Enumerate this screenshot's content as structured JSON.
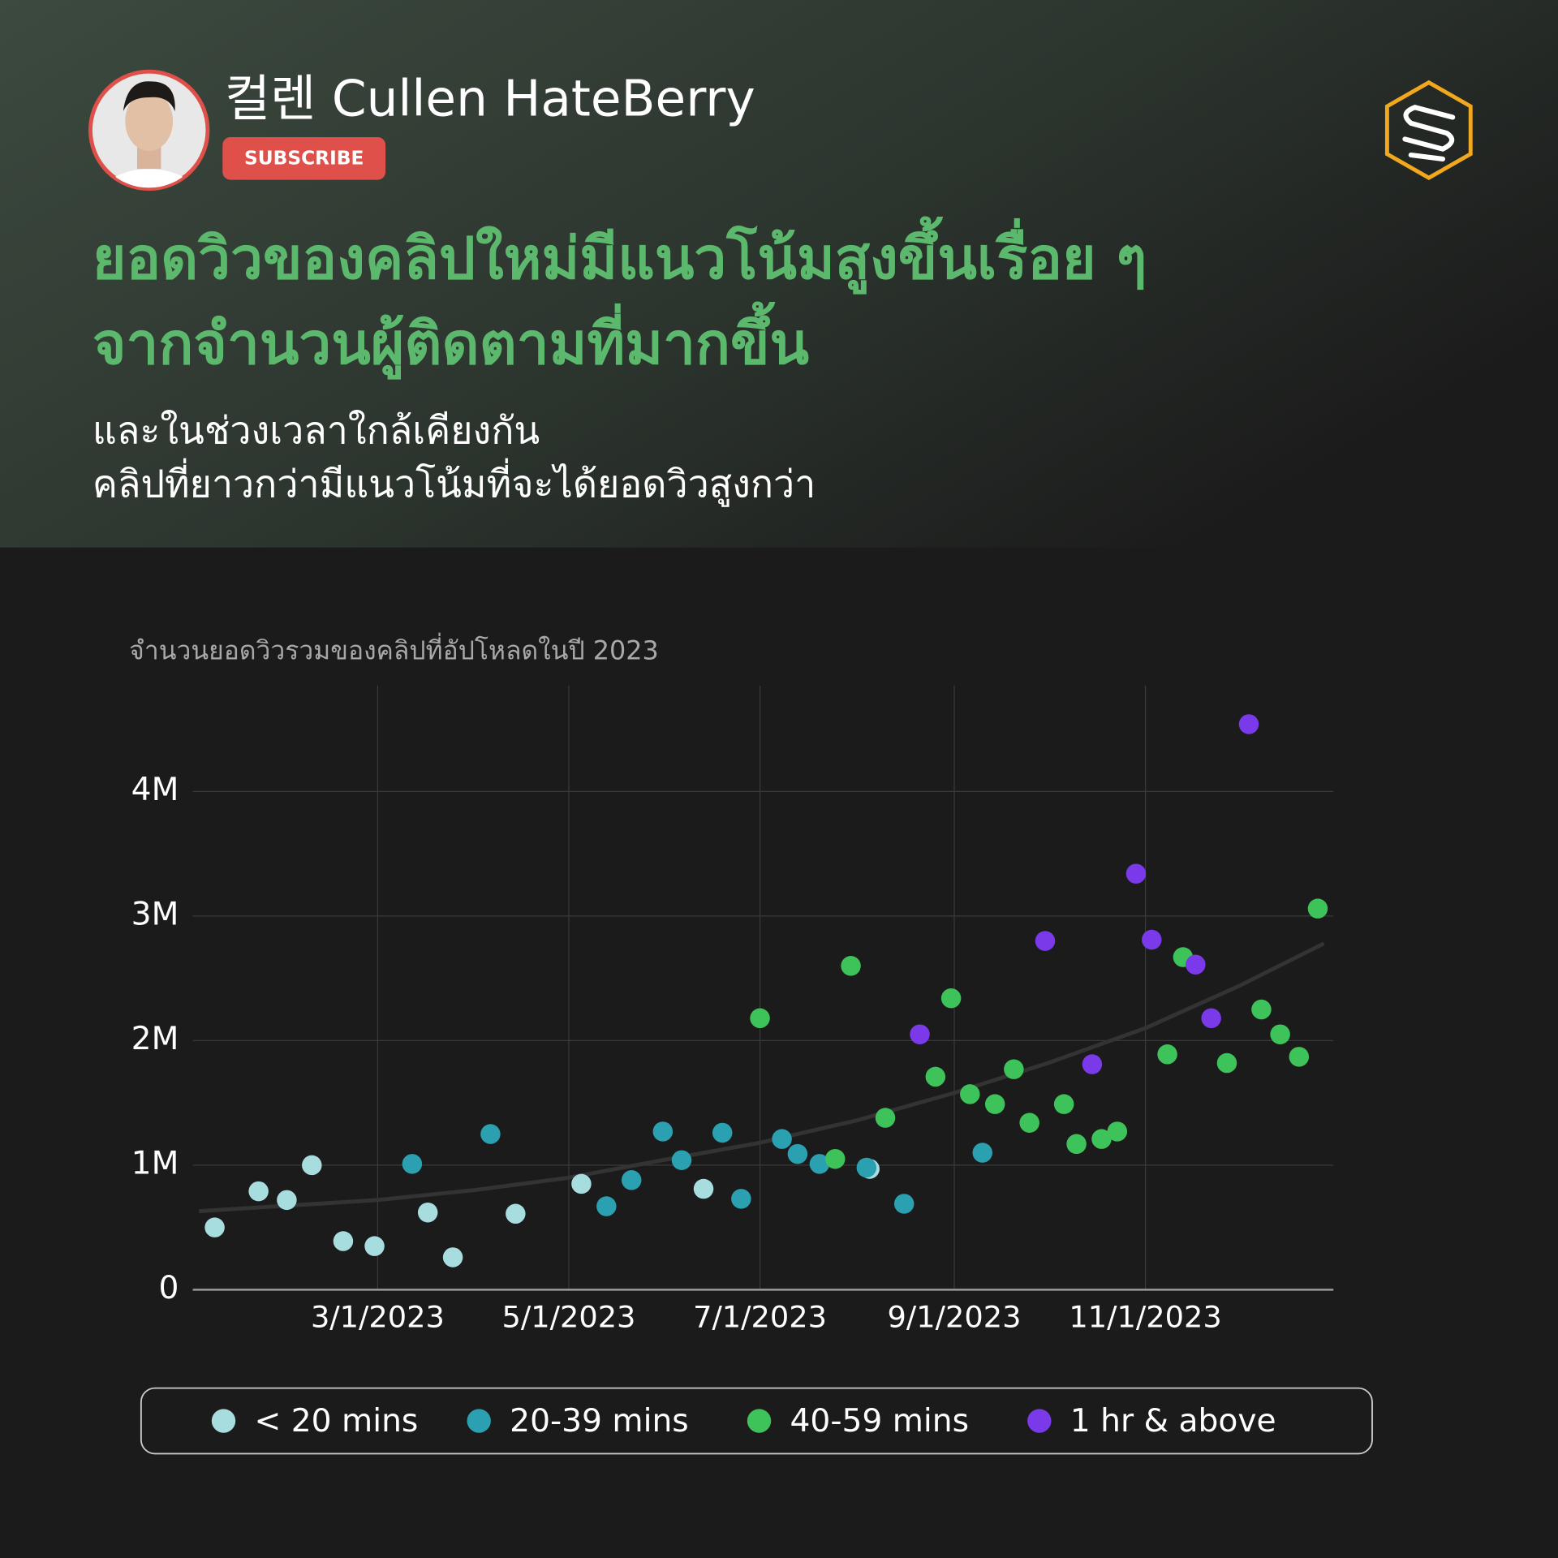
{
  "header": {
    "name": "컬렌 Cullen HateBerry",
    "subscribe": "SUBSCRIBE",
    "headline": [
      "ยอดวิวของคลิปใหม่มีแนวโน้มสูงขึ้นเรื่อย ๆ",
      "จากจำนวนผู้ติดตามที่มากขึ้น"
    ],
    "subtitle": [
      "และในช่วงเวลาใกล้เคียงกัน",
      "คลิปที่ยาวกว่ามีแนวโน้มที่จะได้ยอดวิวสูงกว่า"
    ]
  },
  "chart_data": {
    "type": "scatter",
    "title": "จำนวนยอดวิวรวมของคลิปที่อัปโหลดในปี 2023",
    "xlim": [
      "1/1/2023",
      "12/31/2023"
    ],
    "xticks": [
      "3/1/2023",
      "5/1/2023",
      "7/1/2023",
      "9/1/2023",
      "11/1/2023"
    ],
    "ylim": [
      0,
      4850000
    ],
    "yticks": [
      0,
      {
        "value": 1000000,
        "label": "1M"
      },
      {
        "value": 2000000,
        "label": "2M"
      },
      {
        "value": 3000000,
        "label": "3M"
      },
      {
        "value": 4000000,
        "label": "4M"
      }
    ],
    "grid": true,
    "legend": "bottom",
    "trend": {
      "color": "#333333",
      "x": [
        "1/3/2023",
        "3/1/2023",
        "4/1/2023",
        "5/1/2023",
        "5/31/2023",
        "7/1/2023",
        "8/1/2023",
        "9/1/2023",
        "10/1/2023",
        "11/1/2023",
        "12/1/2023",
        "12/28/2023"
      ],
      "values": [
        630000,
        720000,
        800000,
        900000,
        1040000,
        1180000,
        1360000,
        1580000,
        1820000,
        2100000,
        2440000,
        2780000
      ]
    },
    "series": [
      {
        "name": "< 20 mins",
        "color": "#a8dde0",
        "x": [
          "1/8/2023",
          "1/22/2023",
          "1/31/2023",
          "2/8/2023",
          "2/18/2023",
          "2/28/2023",
          "3/17/2023",
          "3/25/2023",
          "4/14/2023",
          "5/5/2023",
          "6/13/2023",
          "8/5/2023"
        ],
        "values": [
          500000,
          790000,
          720000,
          1000000,
          390000,
          350000,
          620000,
          260000,
          610000,
          850000,
          810000,
          970000
        ]
      },
      {
        "name": "20-39 mins",
        "color": "#2aa0b0",
        "x": [
          "3/12/2023",
          "4/6/2023",
          "5/13/2023",
          "5/21/2023",
          "5/31/2023",
          "6/6/2023",
          "6/19/2023",
          "6/25/2023",
          "7/8/2023",
          "7/13/2023",
          "7/20/2023",
          "8/4/2023",
          "8/16/2023",
          "9/10/2023"
        ],
        "values": [
          1010000,
          1250000,
          670000,
          880000,
          1270000,
          1040000,
          1260000,
          730000,
          1210000,
          1090000,
          1010000,
          980000,
          690000,
          1100000
        ]
      },
      {
        "name": "40-59 mins",
        "color": "#3ec25a",
        "x": [
          "7/1/2023",
          "7/25/2023",
          "7/30/2023",
          "8/10/2023",
          "8/26/2023",
          "8/31/2023",
          "9/6/2023",
          "9/14/2023",
          "9/20/2023",
          "9/25/2023",
          "10/6/2023",
          "10/10/2023",
          "10/18/2023",
          "10/23/2023",
          "11/8/2023",
          "11/13/2023",
          "11/27/2023",
          "12/8/2023",
          "12/14/2023",
          "12/20/2023",
          "12/26/2023"
        ],
        "values": [
          2180000,
          1050000,
          2600000,
          1380000,
          1710000,
          2340000,
          1570000,
          1490000,
          1770000,
          1340000,
          1490000,
          1170000,
          1210000,
          1270000,
          1890000,
          2670000,
          1820000,
          2250000,
          2050000,
          1870000,
          3060000
        ]
      },
      {
        "name": "1 hr & above",
        "color": "#7a3aea",
        "x": [
          "8/21/2023",
          "9/30/2023",
          "10/15/2023",
          "10/29/2023",
          "11/3/2023",
          "11/17/2023",
          "11/22/2023",
          "12/4/2023"
        ],
        "values": [
          2050000,
          2800000,
          1810000,
          3340000,
          2810000,
          2610000,
          2180000,
          4540000
        ]
      }
    ]
  }
}
